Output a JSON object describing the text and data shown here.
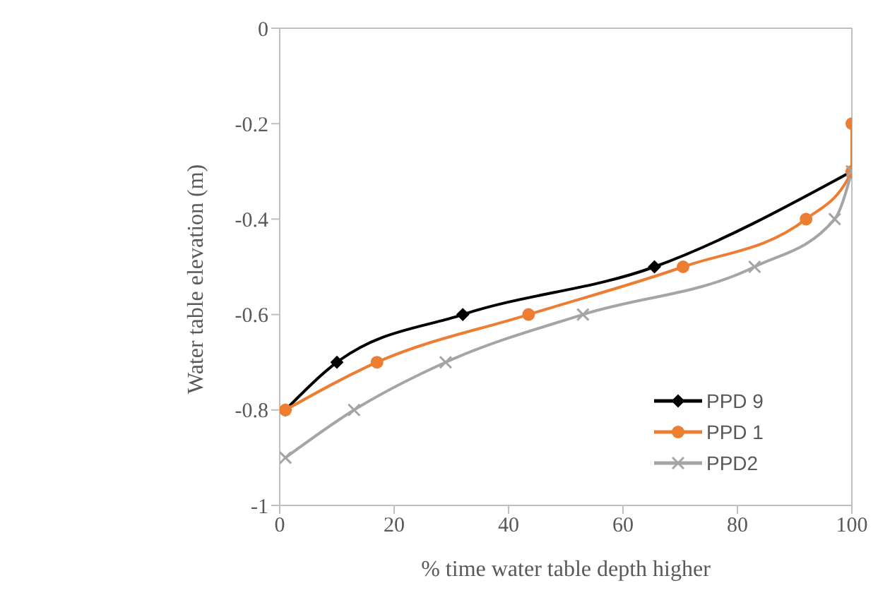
{
  "chart_data": {
    "type": "line",
    "xlabel": "% time water table depth higher",
    "ylabel": "Water table elevation  (m)",
    "xlim": [
      0,
      100
    ],
    "xticks": [
      0,
      20,
      40,
      60,
      80,
      100
    ],
    "ylim": [
      -1,
      0
    ],
    "yticks": [
      0,
      -0.2,
      -0.4,
      -0.6,
      -0.8,
      -1
    ],
    "grid": false,
    "legend": "right",
    "line_style": "solid",
    "series": [
      {
        "name": "PPD 9",
        "color": "#000000",
        "marker": "diamond",
        "x": [
          1,
          10,
          32,
          65.5,
          100
        ],
        "values": [
          -0.8,
          -0.7,
          -0.6,
          -0.5,
          -0.3
        ]
      },
      {
        "name": "PPD 1",
        "color": "#ed7d31",
        "marker": "circle",
        "x": [
          1,
          17,
          43.5,
          70.5,
          92,
          100,
          100
        ],
        "values": [
          -0.8,
          -0.7,
          -0.6,
          -0.5,
          -0.4,
          -0.3,
          -0.2
        ]
      },
      {
        "name": "PPD2",
        "color": "#a5a5a5",
        "marker": "cross",
        "x": [
          1,
          13,
          29,
          53,
          83,
          97,
          100
        ],
        "values": [
          -0.9,
          -0.8,
          -0.7,
          -0.6,
          -0.5,
          -0.4,
          -0.3
        ]
      }
    ]
  }
}
